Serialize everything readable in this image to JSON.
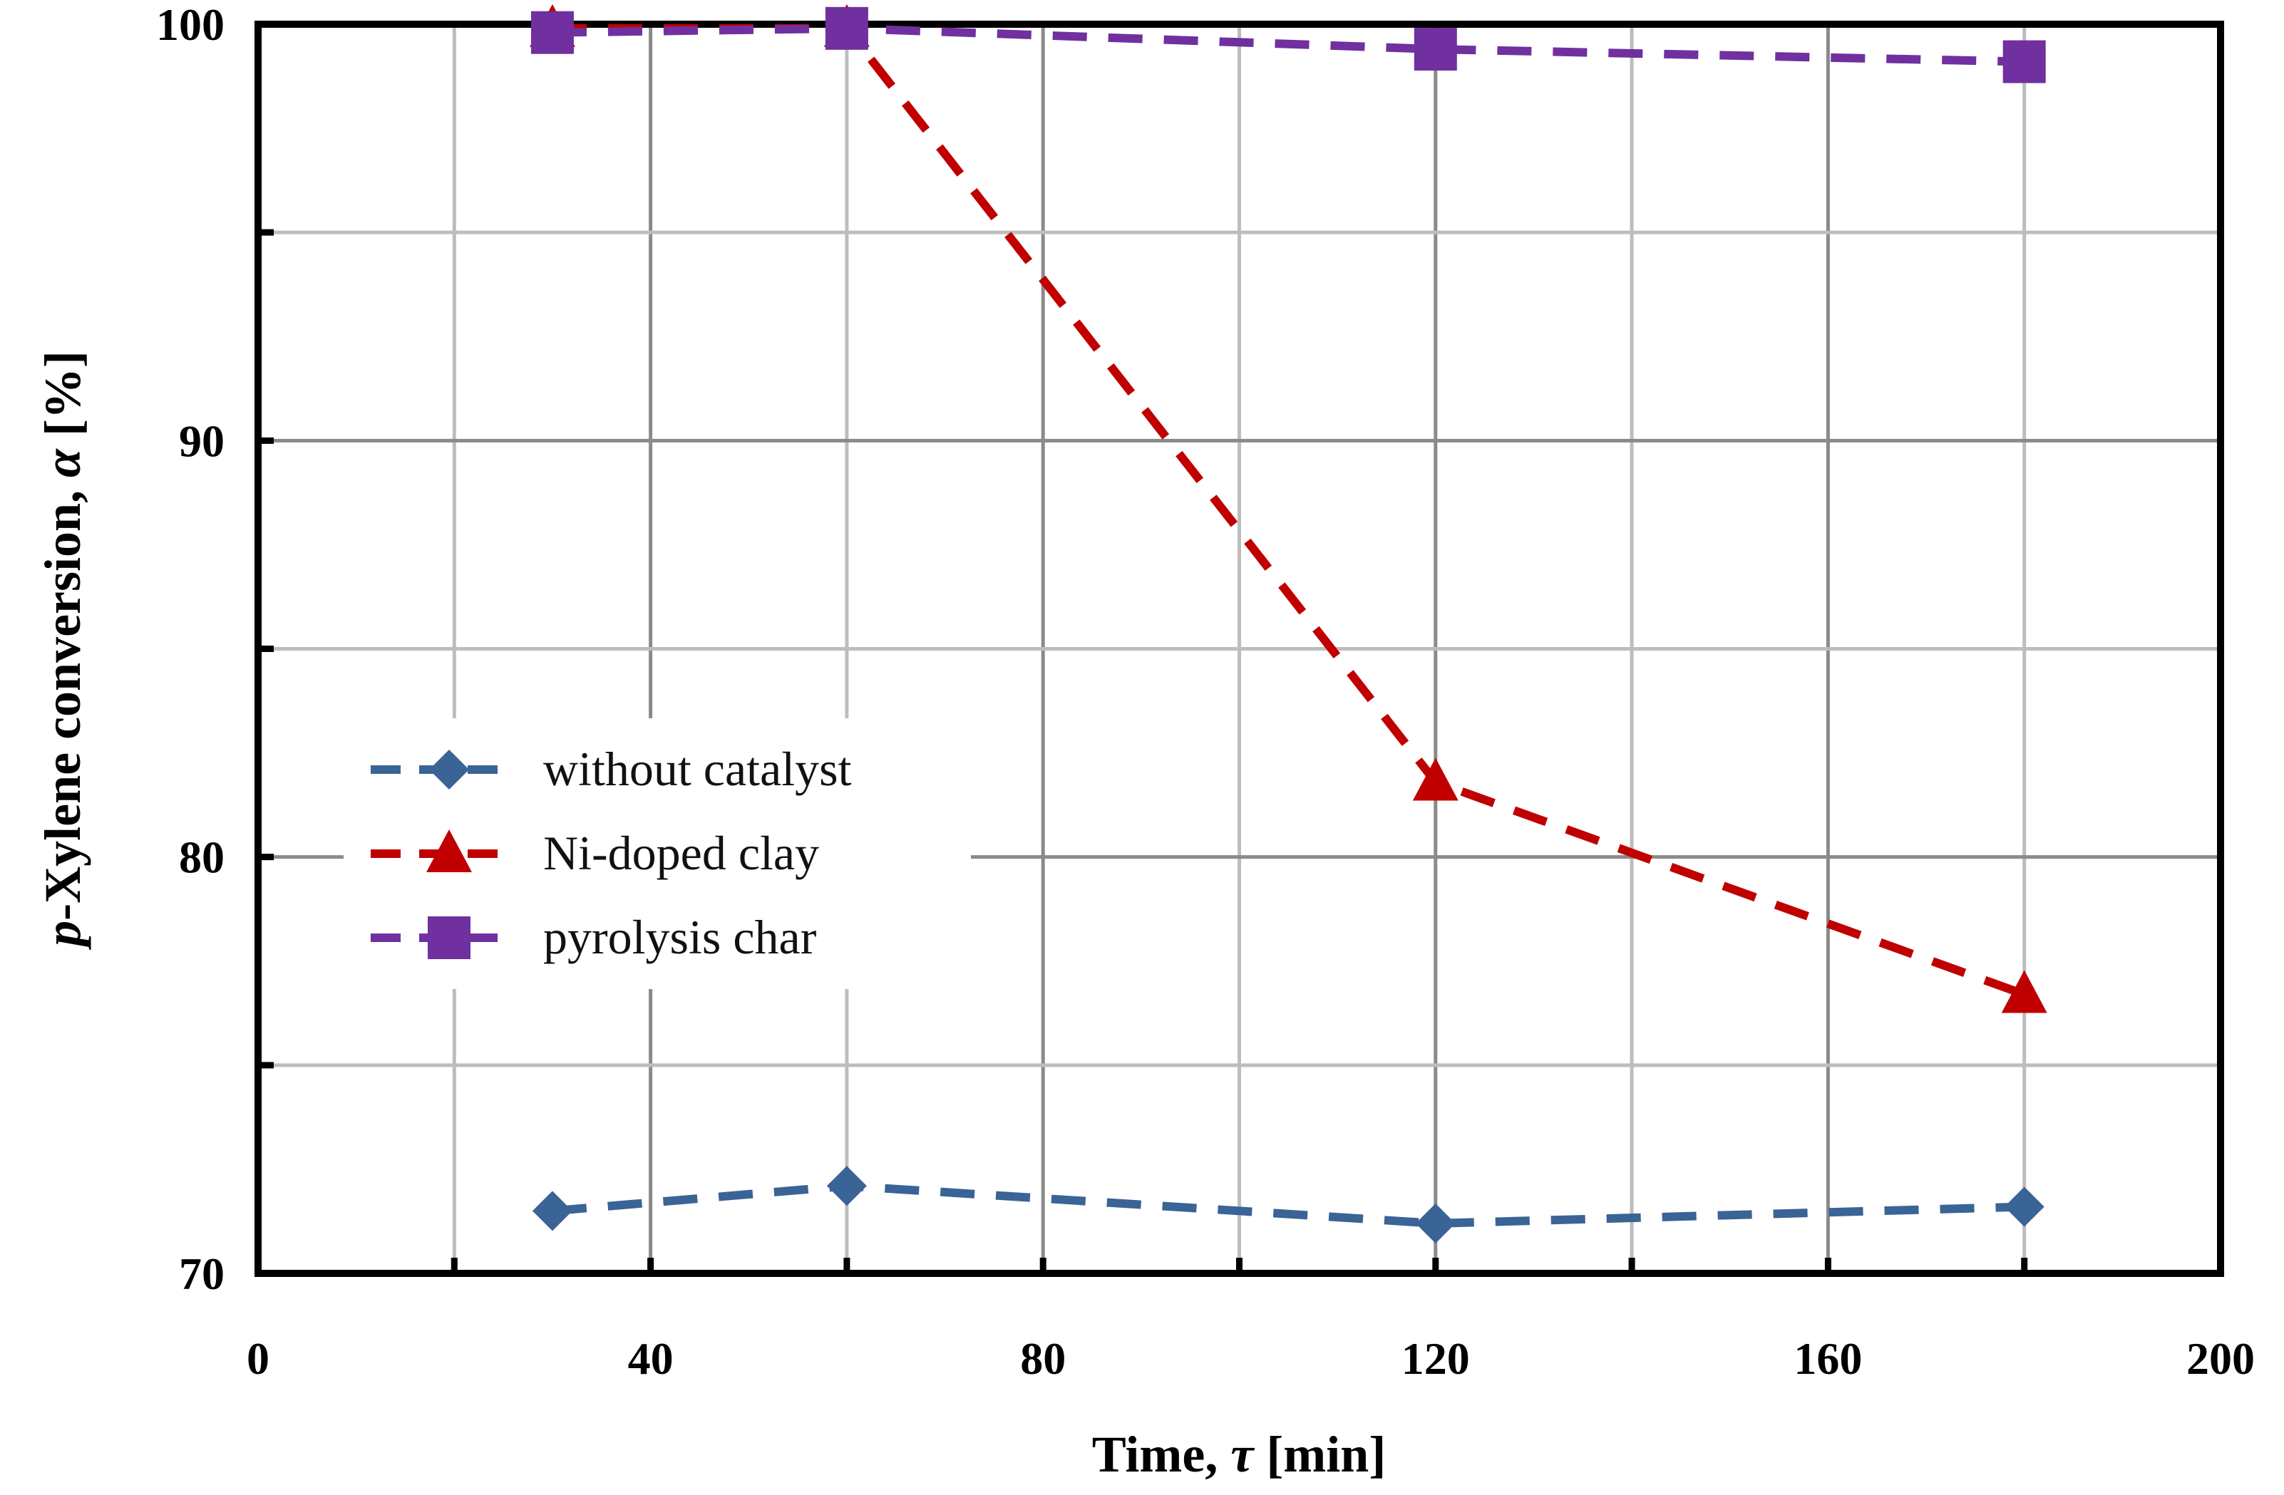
{
  "chart_data": {
    "type": "line",
    "title": "",
    "xlabel_main": "Time, ",
    "xlabel_symbol": "τ",
    "xlabel_unit": " [min]",
    "ylabel_prefix": "p",
    "ylabel_main": "-Xylene conversion, ",
    "ylabel_symbol": "α",
    "ylabel_unit": " [%]",
    "xlim": [
      0,
      200
    ],
    "ylim": [
      70,
      100
    ],
    "x_ticks": [
      0,
      40,
      80,
      120,
      160,
      200
    ],
    "x_tick_labels": [
      "0",
      "40",
      "80",
      "120",
      "160",
      "200"
    ],
    "y_ticks": [
      70,
      80,
      90,
      100
    ],
    "y_tick_labels": [
      "70",
      "80",
      "90",
      "100"
    ],
    "x_minor_step": 20,
    "y_minor_step": 5,
    "grid": true,
    "legend_position": "center-left",
    "series": [
      {
        "name": "without catalyst",
        "color": "#3A6396",
        "marker": "diamond",
        "x": [
          30,
          60,
          120,
          180
        ],
        "values": [
          71.5,
          72.1,
          71.2,
          71.6
        ]
      },
      {
        "name": "Ni-doped clay",
        "color": "#C00000",
        "marker": "triangle",
        "x": [
          30,
          60,
          120,
          180
        ],
        "values": [
          99.9,
          99.9,
          81.8,
          76.7
        ]
      },
      {
        "name": "pyrolysis char",
        "color": "#7030A0",
        "marker": "square",
        "x": [
          30,
          60,
          120,
          180
        ],
        "values": [
          99.8,
          99.9,
          99.4,
          99.1
        ]
      }
    ]
  }
}
